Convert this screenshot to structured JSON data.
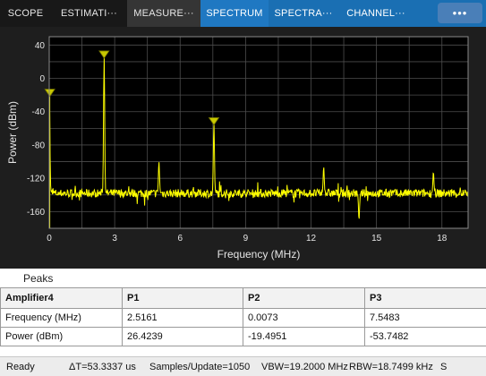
{
  "toolstrip": {
    "tabs": [
      {
        "label": "SCOPE",
        "style": "normal"
      },
      {
        "label": "ESTIMATI···",
        "style": "normal"
      },
      {
        "label": "MEASURE···",
        "style": "active"
      },
      {
        "label": "SPECTRUM",
        "style": "blue-first"
      },
      {
        "label": "SPECTRA···",
        "style": "blue"
      },
      {
        "label": "CHANNEL···",
        "style": "blue"
      }
    ],
    "more_label": "•••"
  },
  "plot": {
    "background": "#000000",
    "trace_color": "#ffff00",
    "grid_color": "#4d4d4d",
    "marker_color": "#c8c800"
  },
  "chart_data": {
    "type": "line",
    "xlabel": "Frequency (MHz)",
    "ylabel": "Power (dBm)",
    "xlim": [
      0,
      19.2
    ],
    "ylim": [
      -180,
      50
    ],
    "xticks": [
      0,
      3,
      6,
      9,
      12,
      15,
      18
    ],
    "yticks": [
      40,
      0,
      -40,
      -80,
      -120,
      -160
    ],
    "grid": true,
    "noise_floor": -138,
    "peaks": [
      {
        "x": 0.0073,
        "y": -19.4951
      },
      {
        "x": 2.5161,
        "y": 26.4239
      },
      {
        "x": 5.03,
        "y": -100
      },
      {
        "x": 7.5483,
        "y": -53.7482
      },
      {
        "x": 12.58,
        "y": -106
      },
      {
        "x": 14.2,
        "y": -170
      },
      {
        "x": 17.61,
        "y": -112
      }
    ],
    "markers": [
      {
        "x": 0.0073,
        "y": -19.4951
      },
      {
        "x": 2.5161,
        "y": 26.4239
      },
      {
        "x": 7.5483,
        "y": -53.7482
      }
    ]
  },
  "peaks_panel": {
    "title": "Peaks",
    "headers": [
      "Amplifier4",
      "P1",
      "P2",
      "P3"
    ],
    "rows": [
      [
        "Frequency (MHz)",
        "2.5161",
        "0.0073",
        "7.5483"
      ],
      [
        "Power (dBm)",
        "26.4239",
        "-19.4951",
        "-53.7482"
      ]
    ]
  },
  "status": {
    "ready": "Ready",
    "delta_t": "ΔT=53.3337 us",
    "samples": "Samples/Update=1050",
    "vbw": "VBW=19.2000 MHz",
    "rbw": "RBW=18.7499 kHz",
    "extra": "S"
  }
}
